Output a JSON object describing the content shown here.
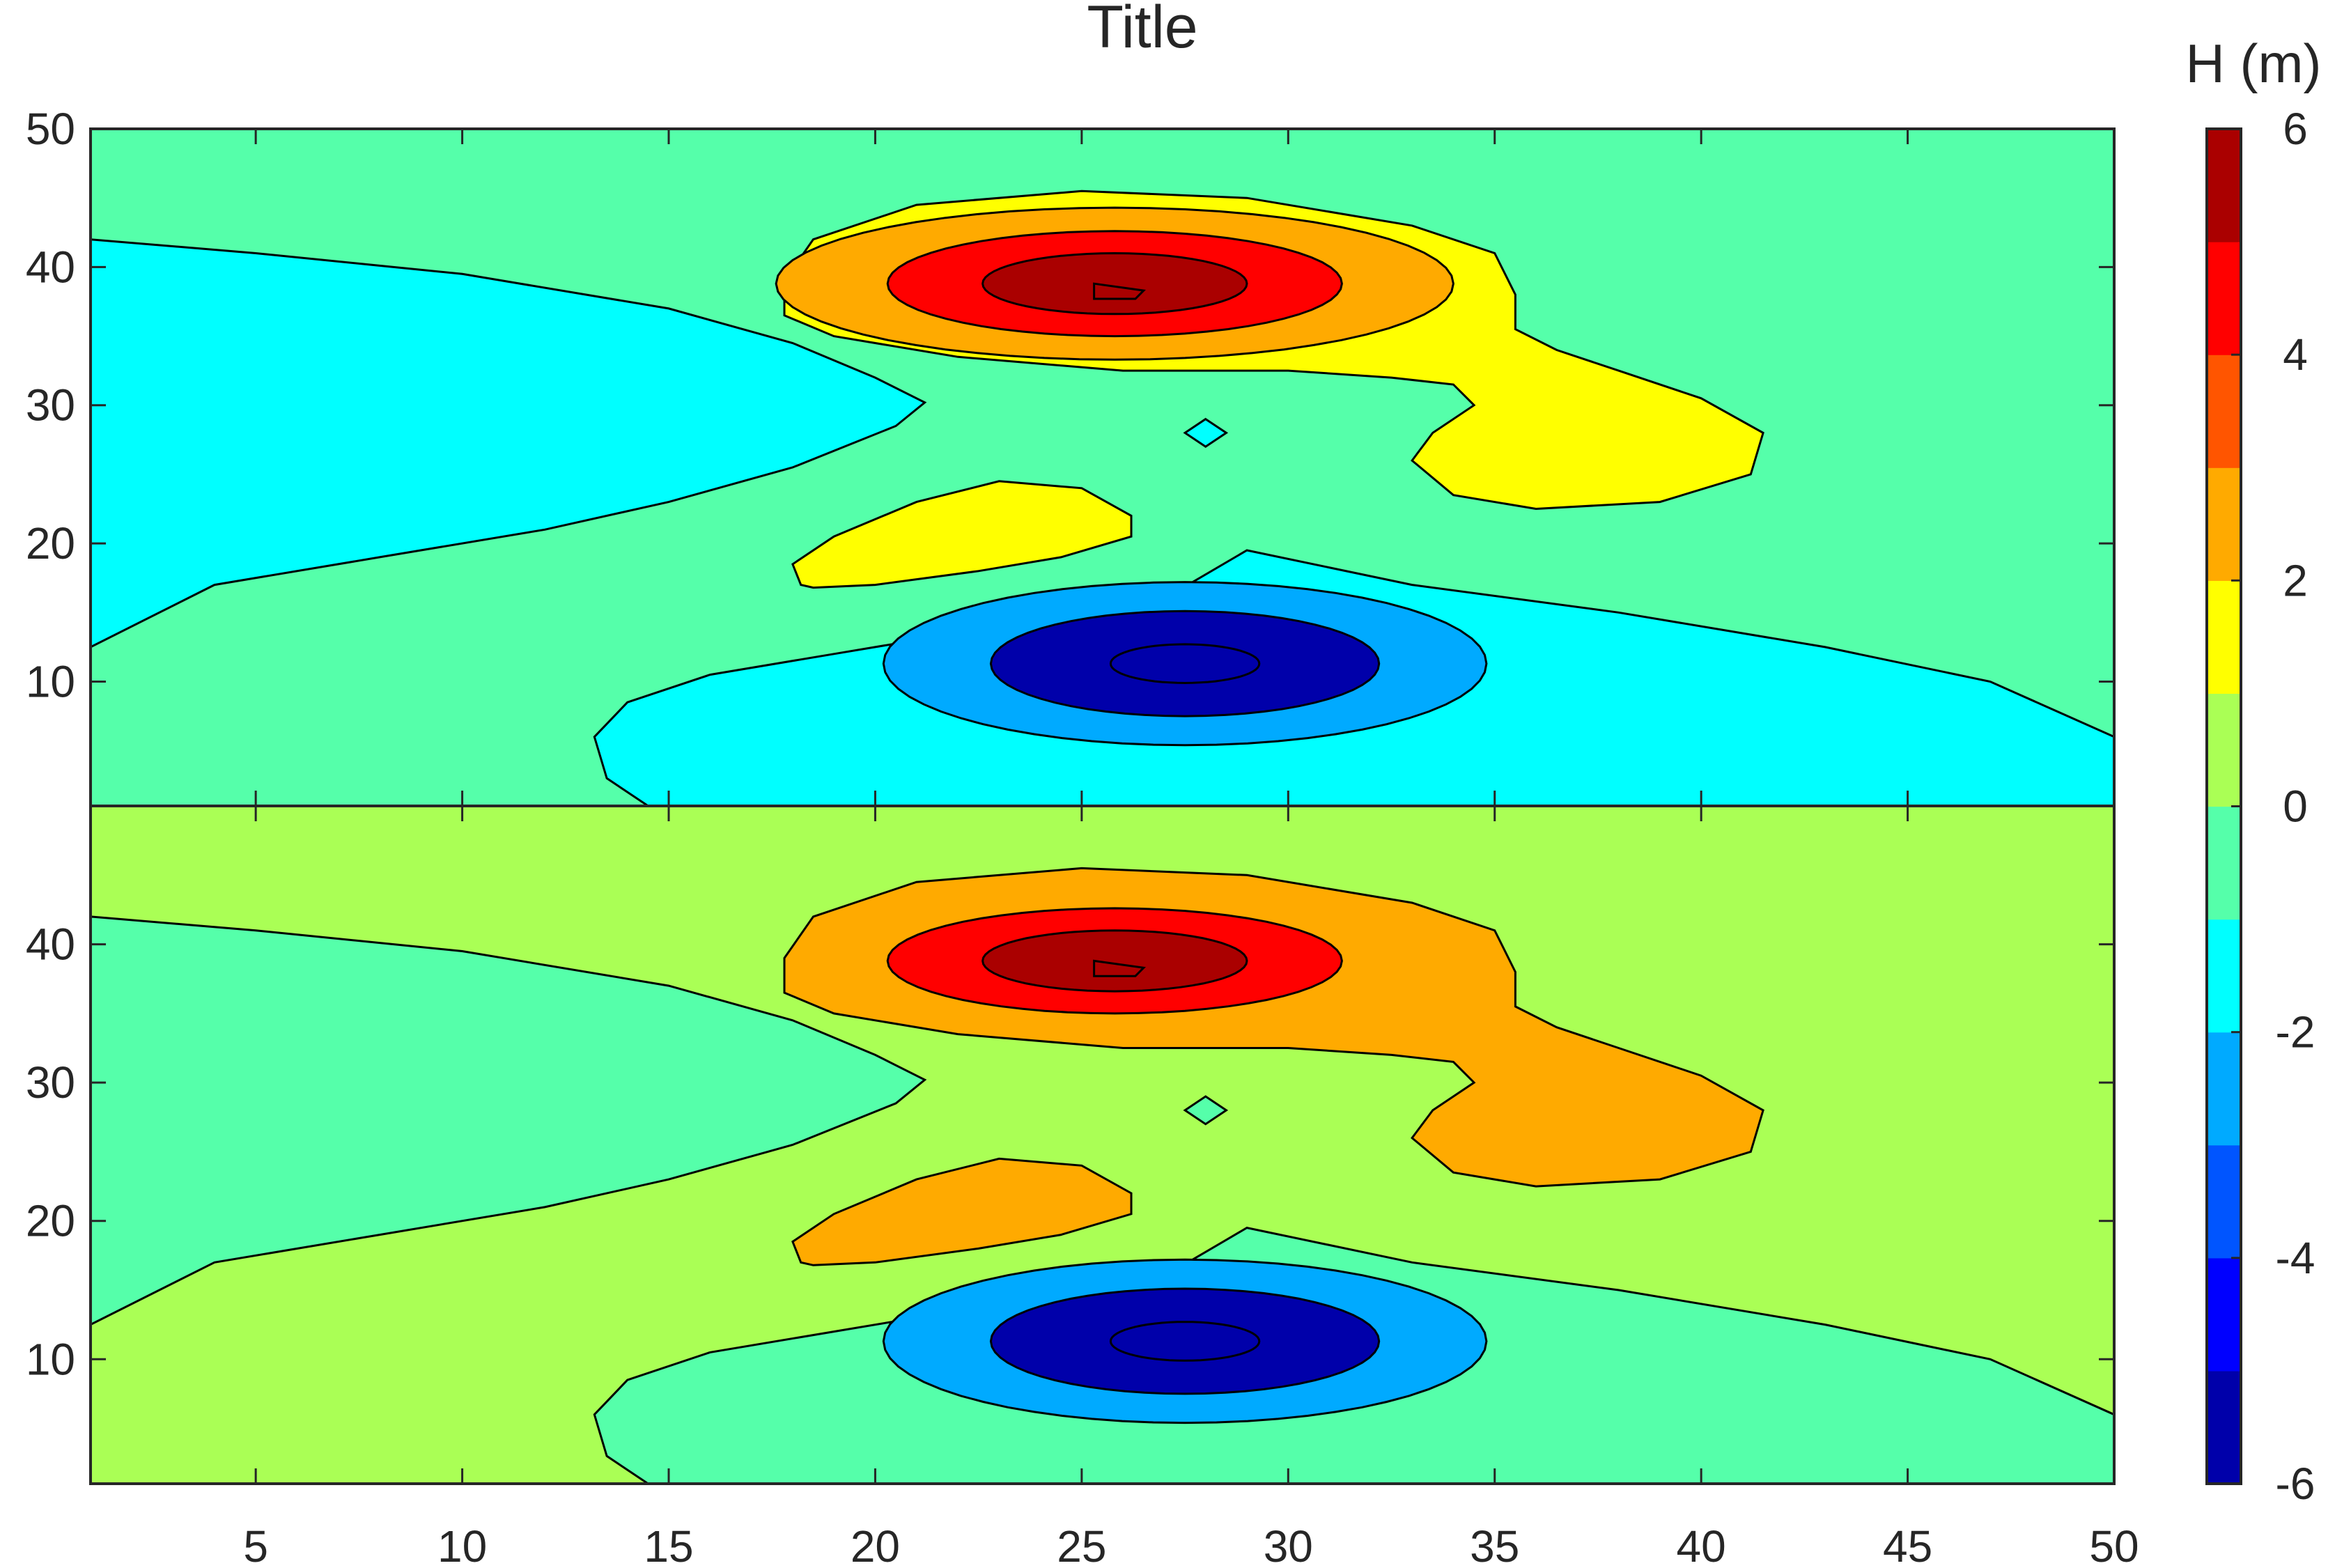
{
  "chart_data": {
    "type": "contourf",
    "title": "Title",
    "xlabel": "",
    "ylabel": "",
    "xlim": [
      1,
      50
    ],
    "x_ticks": [
      5,
      10,
      15,
      20,
      25,
      30,
      35,
      40,
      45,
      50
    ],
    "panels": [
      {
        "name": "top",
        "ylim": [
          1,
          50
        ],
        "y_ticks": [
          10,
          20,
          30,
          40,
          50
        ],
        "background_level": -0.5,
        "features": [
          {
            "kind": "low",
            "center": [
              9,
              25
            ],
            "levels": [
              -1.5
            ]
          },
          {
            "kind": "low",
            "center": [
              13.5,
              27
            ],
            "levels": [
              -3
            ]
          },
          {
            "kind": "low",
            "center": [
              28,
              28
            ],
            "levels": [
              -1.5
            ]
          },
          {
            "kind": "high",
            "center": [
              25,
              38.5
            ],
            "levels": [
              1.5,
              2.5,
              4.5,
              5.5
            ]
          },
          {
            "kind": "high",
            "center": [
              37,
              27
            ],
            "levels": [
              1.5
            ]
          },
          {
            "kind": "high",
            "center": [
              22,
              20
            ],
            "levels": [
              1.5
            ]
          },
          {
            "kind": "low",
            "center": [
              27,
              11.5
            ],
            "levels": [
              -1.5,
              -3,
              -5.5,
              -6
            ]
          }
        ]
      },
      {
        "name": "bottom",
        "ylim": [
          1,
          50
        ],
        "y_ticks": [
          10,
          20,
          30,
          40
        ],
        "background_level": 0.5,
        "features": [
          {
            "kind": "low",
            "center": [
              9,
              25
            ],
            "levels": [
              -1
            ]
          },
          {
            "kind": "low",
            "center": [
              13.5,
              27
            ],
            "levels": [
              -3
            ]
          },
          {
            "kind": "low",
            "center": [
              28,
              28
            ],
            "levels": [
              -1
            ]
          },
          {
            "kind": "high",
            "center": [
              25,
              38.5
            ],
            "levels": [
              2.5,
              4.5,
              5.5
            ]
          },
          {
            "kind": "high",
            "center": [
              37,
              27
            ],
            "levels": [
              2.5
            ]
          },
          {
            "kind": "high",
            "center": [
              22,
              20
            ],
            "levels": [
              2.5
            ]
          },
          {
            "kind": "low",
            "center": [
              27,
              11.5
            ],
            "levels": [
              -1,
              -3,
              -5.5,
              -6
            ]
          }
        ]
      }
    ],
    "colorbar": {
      "title": "H (m)",
      "clim": [
        -6,
        6
      ],
      "ticks": [
        -6,
        -4,
        -2,
        0,
        2,
        4,
        6
      ],
      "tick_labels": [
        "-6",
        "-4",
        "-2",
        "0",
        "2",
        "4",
        "6"
      ],
      "colors": [
        "#0000aa",
        "#0000ff",
        "#0055ff",
        "#00aaff",
        "#00ffff",
        "#55ffaa",
        "#aaff55",
        "#ffff00",
        "#ffaa00",
        "#ff5500",
        "#ff0000",
        "#aa0000"
      ]
    }
  }
}
